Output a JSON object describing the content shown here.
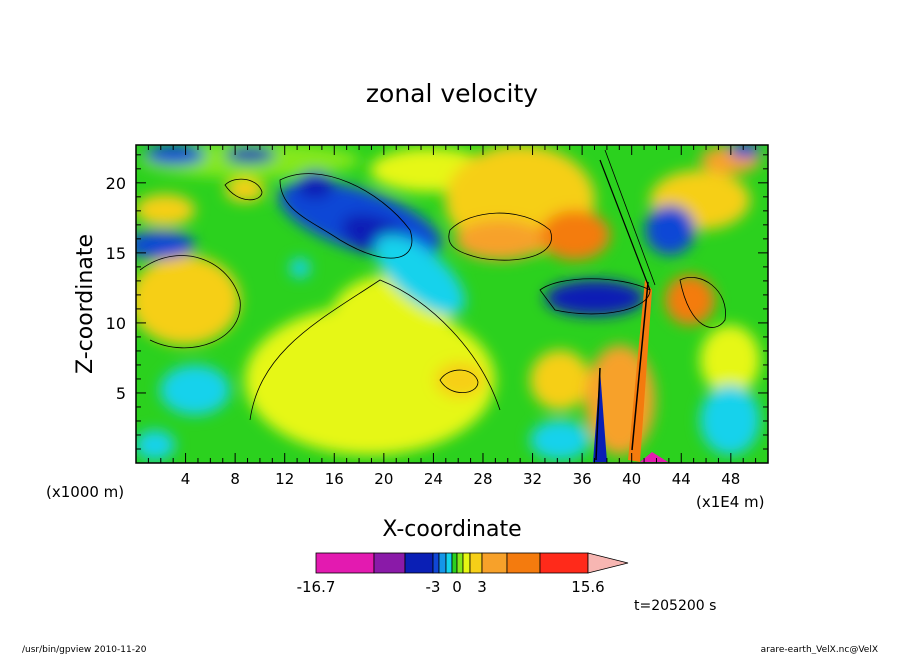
{
  "chart_data": {
    "type": "heatmap",
    "title": "zonal velocity",
    "xlabel": "X-coordinate",
    "ylabel": "Z-coordinate",
    "x_scale_label": "(x1000 m)",
    "x_scale_label_right": "(x1E4 m)",
    "xlim": [
      0,
      51
    ],
    "ylim": [
      0,
      22.7
    ],
    "x_ticks": [
      4,
      8,
      12,
      16,
      20,
      24,
      28,
      32,
      36,
      40,
      44,
      48
    ],
    "y_ticks": [
      5,
      10,
      15,
      20
    ],
    "colorbar": {
      "min": -16.7,
      "max": 15.6,
      "tick_labels": [
        "-16.7",
        "-3",
        "0",
        "3",
        "15.6"
      ],
      "colors": [
        "#e31ab0",
        "#8a1aa8",
        "#0a1fb5",
        "#1046d6",
        "#1496e8",
        "#13d2ec",
        "#2bd11e",
        "#85e81a",
        "#e6f713",
        "#f6cf18",
        "#f7a12a",
        "#f47b0e",
        "#ff2a1a",
        "#f98476",
        "#f7b6b2"
      ]
    },
    "annotation": "t=205200 s"
  },
  "footer": {
    "left": "/usr/bin/gpview   2010-11-20",
    "right": "arare-earth_VelX.nc@VelX"
  }
}
